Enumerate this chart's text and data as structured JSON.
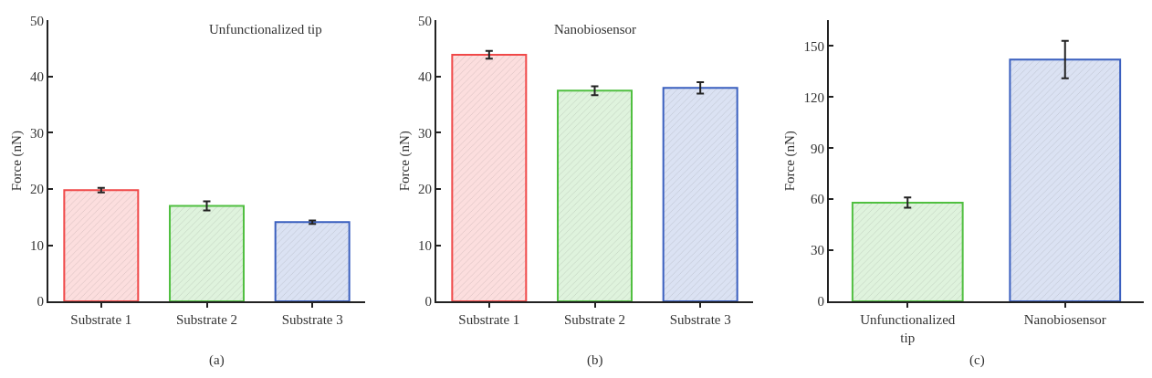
{
  "chart_data": [
    {
      "type": "bar",
      "title": "Unfunctionalized tip",
      "ylabel": "Force (nN)",
      "annotations": [
        "(a)"
      ],
      "categories": [
        "Substrate 1",
        "Substrate 2",
        "Substrate 3"
      ],
      "values": [
        19.8,
        17.0,
        14.1
      ],
      "errors": [
        0.4,
        0.8,
        0.3
      ],
      "colors": [
        "#f04848",
        "#50bf40",
        "#3a5fbf"
      ],
      "ylim": [
        0,
        50
      ],
      "yticks": [
        0,
        10,
        20,
        30,
        40,
        50
      ]
    },
    {
      "type": "bar",
      "title": "Nanobiosensor",
      "ylabel": "Force (nN)",
      "annotations": [
        "(b)"
      ],
      "categories": [
        "Substrate 1",
        "Substrate 2",
        "Substrate 3"
      ],
      "values": [
        43.9,
        37.5,
        38.0
      ],
      "errors": [
        0.7,
        0.8,
        1.0
      ],
      "colors": [
        "#f04848",
        "#50bf40",
        "#3a5fbf"
      ],
      "ylim": [
        0,
        50
      ],
      "yticks": [
        0,
        10,
        20,
        30,
        40,
        50
      ]
    },
    {
      "type": "bar",
      "ylabel": "Force (nN)",
      "annotations": [
        "(c)"
      ],
      "categories": [
        "Unfunctionalized tip",
        "Nanobiosensor"
      ],
      "values": [
        58,
        142
      ],
      "errors": [
        3,
        11
      ],
      "colors": [
        "#50bf40",
        "#3a5fbf"
      ],
      "ylim": [
        0,
        165
      ],
      "yticks": [
        0,
        30,
        60,
        90,
        120,
        150
      ]
    }
  ]
}
